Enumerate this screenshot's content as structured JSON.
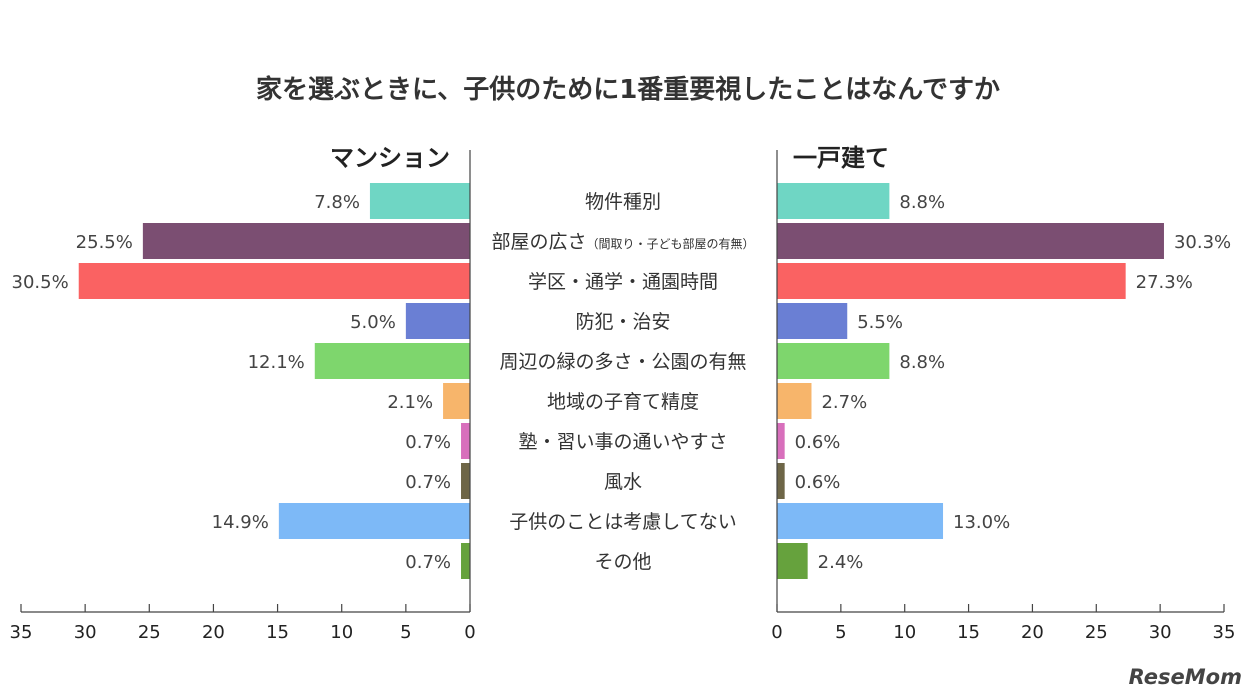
{
  "chart_data": {
    "type": "bar",
    "orientation": "horizontal",
    "title": "家を選ぶときに、子供のために1番重要視したことはなんですか",
    "categories": [
      {
        "main": "物件種別",
        "sub": ""
      },
      {
        "main": "部屋の広さ",
        "sub": "（間取り・子ども部屋の有無）"
      },
      {
        "main": "学区・通学・通園時間",
        "sub": ""
      },
      {
        "main": "防犯・治安",
        "sub": ""
      },
      {
        "main": "周辺の緑の多さ・公園の有無",
        "sub": ""
      },
      {
        "main": "地域の子育て精度",
        "sub": ""
      },
      {
        "main": "塾・習い事の通いやすさ",
        "sub": ""
      },
      {
        "main": "風水",
        "sub": ""
      },
      {
        "main": "子供のことは考慮してない",
        "sub": ""
      },
      {
        "main": "その他",
        "sub": ""
      }
    ],
    "colors": [
      "#6fd6c4",
      "#7b4e72",
      "#fa6262",
      "#6a7fd4",
      "#7ed66d",
      "#f7b56b",
      "#d86fbc",
      "#6e6647",
      "#7db9f7",
      "#66a23d"
    ],
    "series": [
      {
        "name": "マンション",
        "values": [
          7.8,
          25.5,
          30.5,
          5.0,
          12.1,
          2.1,
          0.7,
          0.7,
          14.9,
          0.7
        ],
        "labels": [
          "7.8%",
          "25.5%",
          "30.5%",
          "5.0%",
          "12.1%",
          "2.1%",
          "0.7%",
          "0.7%",
          "14.9%",
          "0.7%"
        ]
      },
      {
        "name": "一戸建て",
        "values": [
          8.8,
          30.3,
          27.3,
          5.5,
          8.8,
          2.7,
          0.6,
          0.6,
          13.0,
          2.4
        ],
        "labels": [
          "8.8%",
          "30.3%",
          "27.3%",
          "5.5%",
          "8.8%",
          "2.7%",
          "0.6%",
          "0.6%",
          "13.0%",
          "2.4%"
        ]
      }
    ],
    "xlim": [
      0,
      35
    ],
    "xticks": [
      "0",
      "5",
      "10",
      "15",
      "20",
      "25",
      "30",
      "35"
    ],
    "xtick_values": [
      0,
      5,
      10,
      15,
      20,
      25,
      30,
      35
    ],
    "grid": false
  },
  "brand": {
    "text": "ReseMom"
  }
}
